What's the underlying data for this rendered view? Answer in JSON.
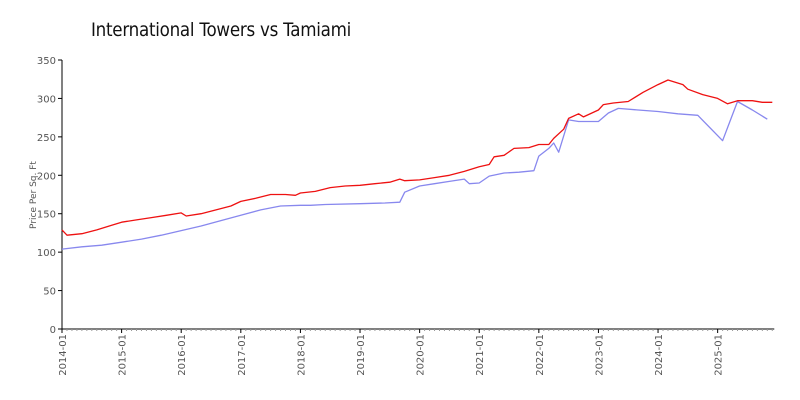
{
  "chart_data": {
    "type": "line",
    "title": "International Towers vs Tamiami",
    "xlabel": "",
    "ylabel": "Price Per Sq. Ft",
    "ylim": [
      0,
      350
    ],
    "yticks": [
      0,
      50,
      100,
      150,
      200,
      250,
      300,
      350
    ],
    "xticks": [
      "2014-01",
      "2015-01",
      "2016-01",
      "2017-01",
      "2018-01",
      "2019-01",
      "2020-01",
      "2021-01",
      "2022-01",
      "2023-01",
      "2024-01",
      "2025-01"
    ],
    "grid": false,
    "legend": "none",
    "series": [
      {
        "name": "International Towers",
        "color": "#ee1111",
        "points": [
          [
            "2014-01",
            129
          ],
          [
            "2014-02",
            122
          ],
          [
            "2014-05",
            124
          ],
          [
            "2014-08",
            129
          ],
          [
            "2014-11",
            135
          ],
          [
            "2015-01",
            139
          ],
          [
            "2015-04",
            142
          ],
          [
            "2015-07",
            145
          ],
          [
            "2015-10",
            148
          ],
          [
            "2016-01",
            151
          ],
          [
            "2016-02",
            147
          ],
          [
            "2016-05",
            150
          ],
          [
            "2016-08",
            155
          ],
          [
            "2016-11",
            160
          ],
          [
            "2017-01",
            166
          ],
          [
            "2017-04",
            170
          ],
          [
            "2017-07",
            175
          ],
          [
            "2017-10",
            175
          ],
          [
            "2017-12",
            174
          ],
          [
            "2018-01",
            177
          ],
          [
            "2018-04",
            179
          ],
          [
            "2018-07",
            184
          ],
          [
            "2018-10",
            186
          ],
          [
            "2019-01",
            187
          ],
          [
            "2019-04",
            189
          ],
          [
            "2019-07",
            191
          ],
          [
            "2019-09",
            195
          ],
          [
            "2019-10",
            193
          ],
          [
            "2020-01",
            194
          ],
          [
            "2020-04",
            197
          ],
          [
            "2020-07",
            200
          ],
          [
            "2020-10",
            205
          ],
          [
            "2021-01",
            211
          ],
          [
            "2021-03",
            214
          ],
          [
            "2021-04",
            224
          ],
          [
            "2021-06",
            226
          ],
          [
            "2021-08",
            235
          ],
          [
            "2021-11",
            236
          ],
          [
            "2022-01",
            240
          ],
          [
            "2022-03",
            240
          ],
          [
            "2022-04",
            248
          ],
          [
            "2022-06",
            260
          ],
          [
            "2022-07",
            274
          ],
          [
            "2022-09",
            280
          ],
          [
            "2022-10",
            276
          ],
          [
            "2023-01",
            285
          ],
          [
            "2023-02",
            292
          ],
          [
            "2023-04",
            294
          ],
          [
            "2023-07",
            296
          ],
          [
            "2023-10",
            308
          ],
          [
            "2024-01",
            318
          ],
          [
            "2024-03",
            324
          ],
          [
            "2024-06",
            318
          ],
          [
            "2024-07",
            312
          ],
          [
            "2024-10",
            305
          ],
          [
            "2025-01",
            300
          ],
          [
            "2025-03",
            293
          ],
          [
            "2025-05",
            297
          ],
          [
            "2025-08",
            297
          ],
          [
            "2025-10",
            295
          ],
          [
            "2025-12",
            295
          ]
        ]
      },
      {
        "name": "Tamiami",
        "color": "#8888ee",
        "points": [
          [
            "2014-01",
            104
          ],
          [
            "2014-05",
            107
          ],
          [
            "2014-09",
            109
          ],
          [
            "2015-01",
            113
          ],
          [
            "2015-05",
            117
          ],
          [
            "2015-09",
            122
          ],
          [
            "2016-01",
            128
          ],
          [
            "2016-05",
            134
          ],
          [
            "2016-09",
            141
          ],
          [
            "2017-01",
            148
          ],
          [
            "2017-05",
            155
          ],
          [
            "2017-09",
            160
          ],
          [
            "2018-01",
            161
          ],
          [
            "2018-03",
            161
          ],
          [
            "2018-06",
            162
          ],
          [
            "2019-01",
            163
          ],
          [
            "2019-06",
            164
          ],
          [
            "2019-09",
            165
          ],
          [
            "2019-10",
            178
          ],
          [
            "2020-01",
            186
          ],
          [
            "2020-04",
            189
          ],
          [
            "2020-07",
            192
          ],
          [
            "2020-10",
            195
          ],
          [
            "2020-11",
            189
          ],
          [
            "2021-01",
            190
          ],
          [
            "2021-03",
            199
          ],
          [
            "2021-06",
            203
          ],
          [
            "2021-09",
            204
          ],
          [
            "2021-12",
            206
          ],
          [
            "2022-01",
            225
          ],
          [
            "2022-03",
            235
          ],
          [
            "2022-04",
            242
          ],
          [
            "2022-05",
            230
          ],
          [
            "2022-07",
            272
          ],
          [
            "2022-09",
            270
          ],
          [
            "2023-01",
            270
          ],
          [
            "2023-03",
            281
          ],
          [
            "2023-05",
            287
          ],
          [
            "2023-09",
            285
          ],
          [
            "2024-01",
            283
          ],
          [
            "2024-05",
            280
          ],
          [
            "2024-09",
            278
          ],
          [
            "2025-02",
            245
          ],
          [
            "2025-05",
            296
          ],
          [
            "2025-08",
            285
          ],
          [
            "2025-11",
            273
          ]
        ]
      }
    ]
  }
}
